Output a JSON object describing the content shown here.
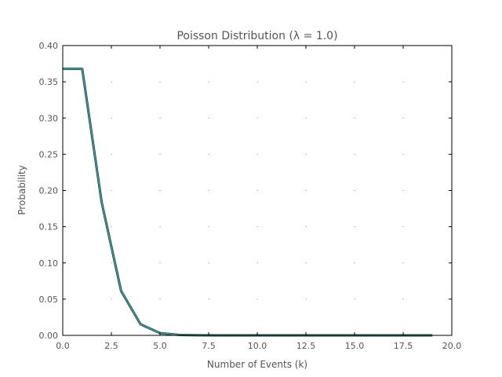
{
  "chart_data": {
    "type": "line",
    "title": "Poisson Distribution (λ = 1.0)",
    "xlabel": "Number of Events (k)",
    "ylabel": "Probability",
    "xlim": [
      0,
      20
    ],
    "ylim": [
      0,
      0.4
    ],
    "grid": true,
    "x_ticks": [
      "0.0",
      "2.5",
      "5.0",
      "7.5",
      "10.0",
      "12.5",
      "15.0",
      "17.5",
      "20.0"
    ],
    "y_ticks": [
      "0.00",
      "0.05",
      "0.10",
      "0.15",
      "0.20",
      "0.25",
      "0.30",
      "0.35",
      "0.40"
    ],
    "x_tick_values": [
      0,
      2.5,
      5,
      7.5,
      10,
      12.5,
      15,
      17.5,
      20
    ],
    "y_tick_values": [
      0,
      0.05,
      0.1,
      0.15,
      0.2,
      0.25,
      0.3,
      0.35,
      0.4
    ],
    "series": [
      {
        "color": "#3a9e96",
        "x": [
          0,
          1,
          2,
          3,
          4,
          5,
          6,
          7,
          8,
          9,
          10,
          11,
          12,
          13,
          14,
          15,
          16,
          17,
          18,
          19
        ],
        "y": [
          0.3679,
          0.3679,
          0.1839,
          0.0613,
          0.0153,
          0.0031,
          0.0005,
          0.0001,
          0.0,
          0.0,
          0.0,
          0.0,
          0.0,
          0.0,
          0.0,
          0.0,
          0.0,
          0.0,
          0.0,
          0.0
        ]
      }
    ]
  }
}
